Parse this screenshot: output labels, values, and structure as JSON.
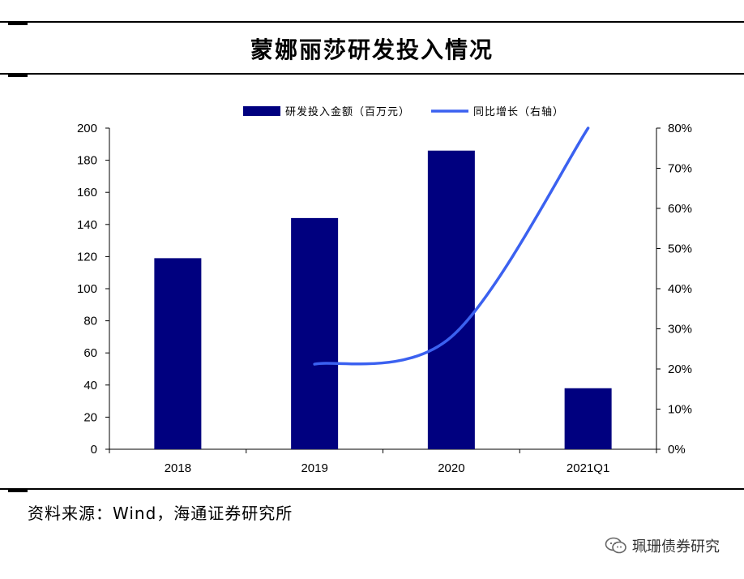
{
  "title": "蒙娜丽莎研发投入情况",
  "source": "资料来源：Wind，海通证券研究所",
  "watermark": "珮珊债券研究",
  "colors": {
    "bar": "#00007f",
    "line": "#3b61f0",
    "axis": "#000000"
  },
  "chart_data": {
    "type": "bar",
    "categories": [
      "2018",
      "2019",
      "2020",
      "2021Q1"
    ],
    "series": [
      {
        "name": "研发投入金额（百万元）",
        "type": "bar",
        "axis": "left",
        "values": [
          119,
          144,
          186,
          38
        ]
      },
      {
        "name": "同比增长（右轴）",
        "type": "line",
        "axis": "right",
        "values": [
          null,
          21.2,
          28,
          80
        ]
      }
    ],
    "y_left": {
      "min": 0,
      "max": 200,
      "ticks": [
        "0",
        "20",
        "40",
        "60",
        "80",
        "100",
        "120",
        "140",
        "160",
        "180",
        "200"
      ]
    },
    "y_right": {
      "min": 0,
      "max": 80,
      "ticks": [
        "0%",
        "10%",
        "20%",
        "30%",
        "40%",
        "50%",
        "60%",
        "70%",
        "80%"
      ]
    },
    "legend_position": "top-center"
  }
}
